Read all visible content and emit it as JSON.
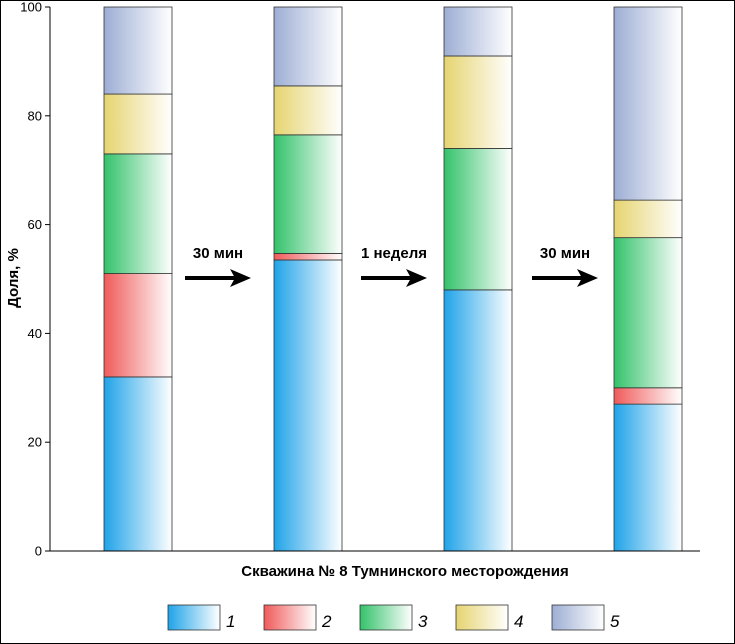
{
  "chart_data": {
    "type": "bar",
    "stacked": true,
    "xlabel": "Скважина № 8 Тумнинского месторождения",
    "ylabel": "Доля, %",
    "ylim": [
      0,
      100
    ],
    "yticks": [
      0,
      20,
      40,
      60,
      80,
      100
    ],
    "categories": [
      "",
      "",
      "",
      ""
    ],
    "series": [
      {
        "name": "1",
        "values": [
          32,
          53.5,
          48,
          27
        ]
      },
      {
        "name": "2",
        "values": [
          19,
          1.2,
          0,
          3
        ]
      },
      {
        "name": "3",
        "values": [
          22,
          21.8,
          26,
          27.6
        ]
      },
      {
        "name": "4",
        "values": [
          11,
          9,
          17,
          6.9
        ]
      },
      {
        "name": "5",
        "values": [
          16,
          14.5,
          9,
          35.5
        ]
      }
    ],
    "colors": [
      "#1fa3e8",
      "#f05a5a",
      "#33c26a",
      "#e6d470",
      "#9daed4"
    ],
    "transitions": [
      "30 мин",
      "1 неделя",
      "30 мин"
    ],
    "legend_position": "bottom"
  }
}
